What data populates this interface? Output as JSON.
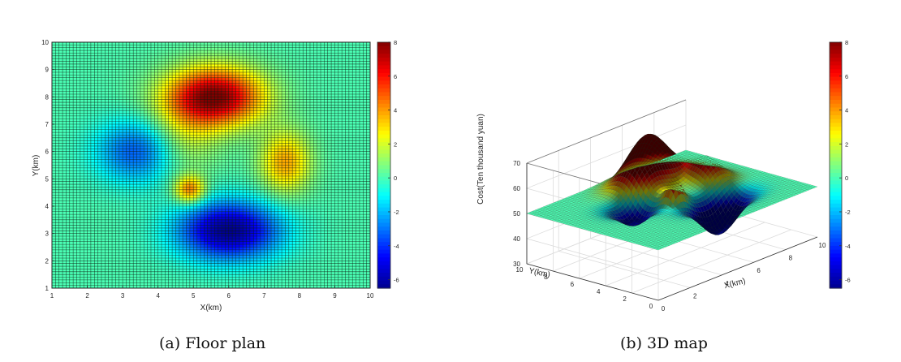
{
  "colormap": [
    "#00008f",
    "#0000ff",
    "#0080ff",
    "#00ffff",
    "#80ff80",
    "#ffff00",
    "#ff8000",
    "#ff0000",
    "#800000"
  ],
  "colormap_alt": [
    "#3e26a8",
    "#3d55f3",
    "#1d8fe0",
    "#0cb0c6",
    "#2fc097",
    "#88c05a",
    "#dbb62f",
    "#f9c638",
    "#f9fb15"
  ],
  "chart_data": [
    {
      "type": "heatmap",
      "title": "",
      "xlabel": "X(km)",
      "ylabel": "Y(km)",
      "xlim": [
        1,
        10
      ],
      "ylim": [
        1,
        10
      ],
      "xticks": [
        "1",
        "2",
        "3",
        "4",
        "5",
        "6",
        "7",
        "8",
        "9",
        "10"
      ],
      "yticks": [
        "1",
        "2",
        "3",
        "4",
        "5",
        "6",
        "7",
        "8",
        "9",
        "10"
      ],
      "grid_lines": 90,
      "color_range": [
        -6.5,
        8
      ],
      "colorbar_ticks": [
        "8",
        "6",
        "4",
        "2",
        "0",
        "-2",
        "-4",
        "-6"
      ],
      "colorbar_values": [
        8,
        6,
        4,
        2,
        0,
        -2,
        -4,
        -6
      ],
      "surface_components": [
        {
          "x": 5.6,
          "y": 8.0,
          "amplitude": 8.0,
          "sigma_x": 0.95,
          "sigma_y": 0.75
        },
        {
          "x": 3.4,
          "y": 6.0,
          "amplitude": -3.5,
          "sigma_x": 0.8,
          "sigma_y": 0.8
        },
        {
          "x": 6.0,
          "y": 3.1,
          "amplitude": -6.5,
          "sigma_x": 1.0,
          "sigma_y": 0.75
        },
        {
          "x": 7.6,
          "y": 5.6,
          "amplitude": 3.8,
          "sigma_x": 0.5,
          "sigma_y": 0.8
        },
        {
          "x": 4.9,
          "y": 4.6,
          "amplitude": 4.5,
          "sigma_x": 0.3,
          "sigma_y": 0.35
        },
        {
          "x": 4.7,
          "y": 6.5,
          "amplitude": 1.8,
          "sigma_x": 0.7,
          "sigma_y": 1.0
        }
      ]
    },
    {
      "type": "surface3d",
      "title": "",
      "xlabel": "X(km)",
      "ylabel": "Y(km)",
      "zlabel": "Cost(Ten thousand yuan)",
      "xlim": [
        0,
        10
      ],
      "ylim": [
        0,
        10
      ],
      "zlim": [
        30,
        70
      ],
      "xticks": [
        "0",
        "2",
        "4",
        "6",
        "8",
        "10"
      ],
      "yticks": [
        "0",
        "2",
        "4",
        "6",
        "8",
        "10"
      ],
      "zticks": [
        "30",
        "40",
        "50",
        "60",
        "70"
      ],
      "base_level": 50,
      "surface_components": [
        {
          "x": 6.0,
          "y": 8.0,
          "amplitude": 19.0,
          "sigma_x": 1.1,
          "sigma_y": 0.85
        },
        {
          "x": 3.5,
          "y": 6.0,
          "amplitude": -8.0,
          "sigma_x": 0.8,
          "sigma_y": 0.8
        },
        {
          "x": 6.3,
          "y": 3.0,
          "amplitude": -14.0,
          "sigma_x": 1.0,
          "sigma_y": 0.75
        },
        {
          "x": 7.8,
          "y": 5.8,
          "amplitude": 9.0,
          "sigma_x": 0.6,
          "sigma_y": 0.9
        },
        {
          "x": 5.0,
          "y": 4.8,
          "amplitude": 10.0,
          "sigma_x": 0.35,
          "sigma_y": 0.4
        },
        {
          "x": 4.8,
          "y": 6.6,
          "amplitude": 4.0,
          "sigma_x": 0.7,
          "sigma_y": 1.0
        }
      ],
      "color_range": [
        -6.5,
        8
      ],
      "colorbar_ticks": [
        "8",
        "6",
        "4",
        "2",
        "0",
        "-2",
        "-4",
        "-6"
      ],
      "colorbar_values": [
        8,
        6,
        4,
        2,
        0,
        -2,
        -4,
        -6
      ]
    }
  ],
  "captions": {
    "a": "(a)  Floor plan",
    "b": "(b)  3D map"
  }
}
